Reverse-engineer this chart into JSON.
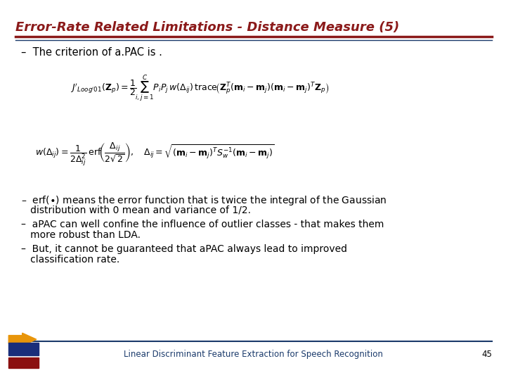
{
  "title": "Error-Rate Related Limitations - Distance Measure (5)",
  "title_color": "#8B1A1A",
  "title_fontsize": 13,
  "background_color": "#FFFFFF",
  "line_color": "#8B1A1A",
  "line2_color": "#1A3A6B",
  "footer_text": "Linear Discriminant Feature Extraction for Speech Recognition",
  "footer_page": "45",
  "footer_color": "#1A3A6B",
  "formula1_fontsize": 9.0,
  "formula2_fontsize": 9.0,
  "bullet_fontsize": 10.0,
  "criterion_fontsize": 10.5
}
